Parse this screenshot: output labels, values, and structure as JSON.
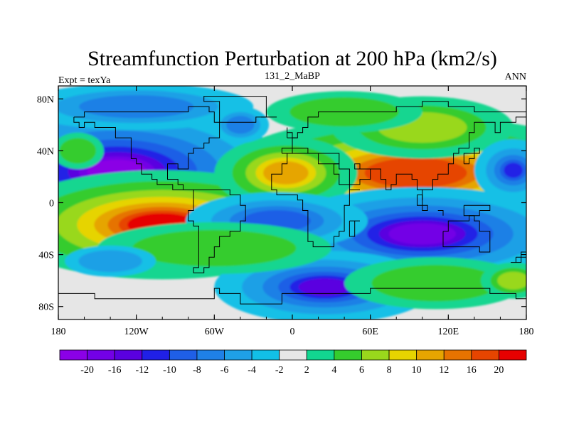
{
  "chart_data": {
    "type": "heatmap",
    "title": "Streamfunction Perturbation at 200 hPa (km2/s)",
    "left_string": "Expt = texYa",
    "center_string": "131_2_MaBP",
    "right_string": "ANN",
    "x_ticks": [
      "180",
      "120W",
      "60W",
      "0",
      "60E",
      "120E",
      "180"
    ],
    "x_tick_values": [
      -180,
      -120,
      -60,
      0,
      60,
      120,
      180
    ],
    "y_ticks": [
      "80N",
      "40N",
      "0",
      "40S",
      "80S"
    ],
    "y_tick_values": [
      80,
      40,
      0,
      -40,
      -80
    ],
    "xlim": [
      -180,
      180
    ],
    "ylim": [
      -90,
      90
    ],
    "colorbar": {
      "levels": [
        "-20",
        "-16",
        "-12",
        "-10",
        "-8",
        "-6",
        "-4",
        "-2",
        "2",
        "4",
        "6",
        "8",
        "10",
        "12",
        "16",
        "20"
      ],
      "colors": [
        "#8b00e6",
        "#7300e6",
        "#5a00e0",
        "#2020e6",
        "#1f5fe6",
        "#1f80e6",
        "#1fa0e6",
        "#12c0e6",
        "#e6e6e6",
        "#12d690",
        "#35cc2d",
        "#99d81c",
        "#e6d400",
        "#e6a500",
        "#e67300",
        "#e64500",
        "#e60000"
      ]
    },
    "features": [
      {
        "name": "negative-center-north-pacific",
        "lon": -135,
        "lat": 22,
        "value": -20
      },
      {
        "name": "positive-center-south-pacific",
        "lon": -100,
        "lat": -16,
        "value": 20
      },
      {
        "name": "positive-center-asia",
        "lon": 95,
        "lat": 22,
        "value": 16
      },
      {
        "name": "positive-center-north-africa",
        "lon": -5,
        "lat": 22,
        "value": 10
      },
      {
        "name": "negative-center-indian-ocean",
        "lon": 100,
        "lat": -25,
        "value": -16
      },
      {
        "name": "negative-center-south-atlantic",
        "lon": -10,
        "lat": -15,
        "value": -8
      },
      {
        "name": "negative-center-southern-ocean",
        "lon": 25,
        "lat": -65,
        "value": -12
      },
      {
        "name": "positive-center-siberia",
        "lon": 100,
        "lat": 60,
        "value": 6
      },
      {
        "name": "negative-center-arctic",
        "lon": -130,
        "lat": 75,
        "value": -6
      }
    ]
  }
}
